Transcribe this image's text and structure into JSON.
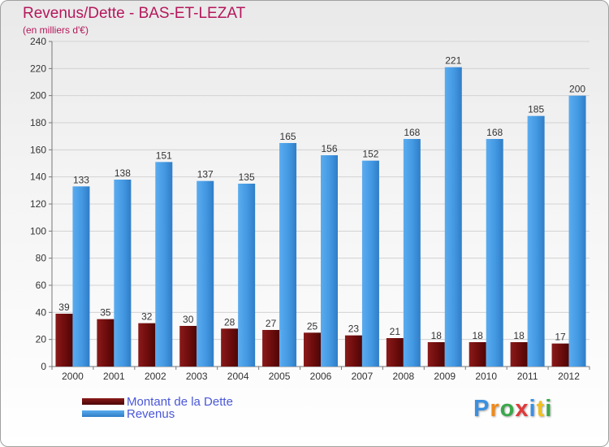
{
  "header": {
    "title": "Revenus/Dette - BAS-ET-LEZAT",
    "subtitle": "(en milliers d'€)"
  },
  "chart_data": {
    "type": "bar",
    "title": "Revenus/Dette - BAS-ET-LEZAT",
    "subtitle": "(en milliers d'€)",
    "xlabel": "",
    "ylabel": "",
    "ylim": [
      0,
      240
    ],
    "yticks": [
      0,
      20,
      40,
      60,
      80,
      100,
      120,
      140,
      160,
      180,
      200,
      220,
      240
    ],
    "grid": true,
    "legend_position": "bottom-left",
    "categories": [
      "2000",
      "2001",
      "2002",
      "2003",
      "2004",
      "2005",
      "2006",
      "2007",
      "2008",
      "2009",
      "2010",
      "2011",
      "2012"
    ],
    "series": [
      {
        "name": "Montant de la Dette",
        "color": "#7a1010",
        "values": [
          39,
          35,
          32,
          30,
          28,
          27,
          25,
          23,
          21,
          18,
          18,
          18,
          17
        ]
      },
      {
        "name": "Revenus",
        "color": "#4a9fe6",
        "values": [
          133,
          138,
          151,
          137,
          135,
          165,
          156,
          152,
          168,
          221,
          168,
          185,
          200
        ]
      }
    ]
  },
  "legend": {
    "items": [
      {
        "label": "Montant de la Dette",
        "color": "#6b0d0d"
      },
      {
        "label": "Revenus",
        "color": "#3d8fd8"
      }
    ]
  },
  "logo": {
    "letters": [
      "P",
      "r",
      "o",
      "x",
      "i",
      "t",
      "i"
    ],
    "colors": [
      "#3b8fe0",
      "#f08a1a",
      "#3aa84a",
      "#e03a3a",
      "#3b8fe0",
      "#f0c020",
      "#3aa84a"
    ]
  }
}
